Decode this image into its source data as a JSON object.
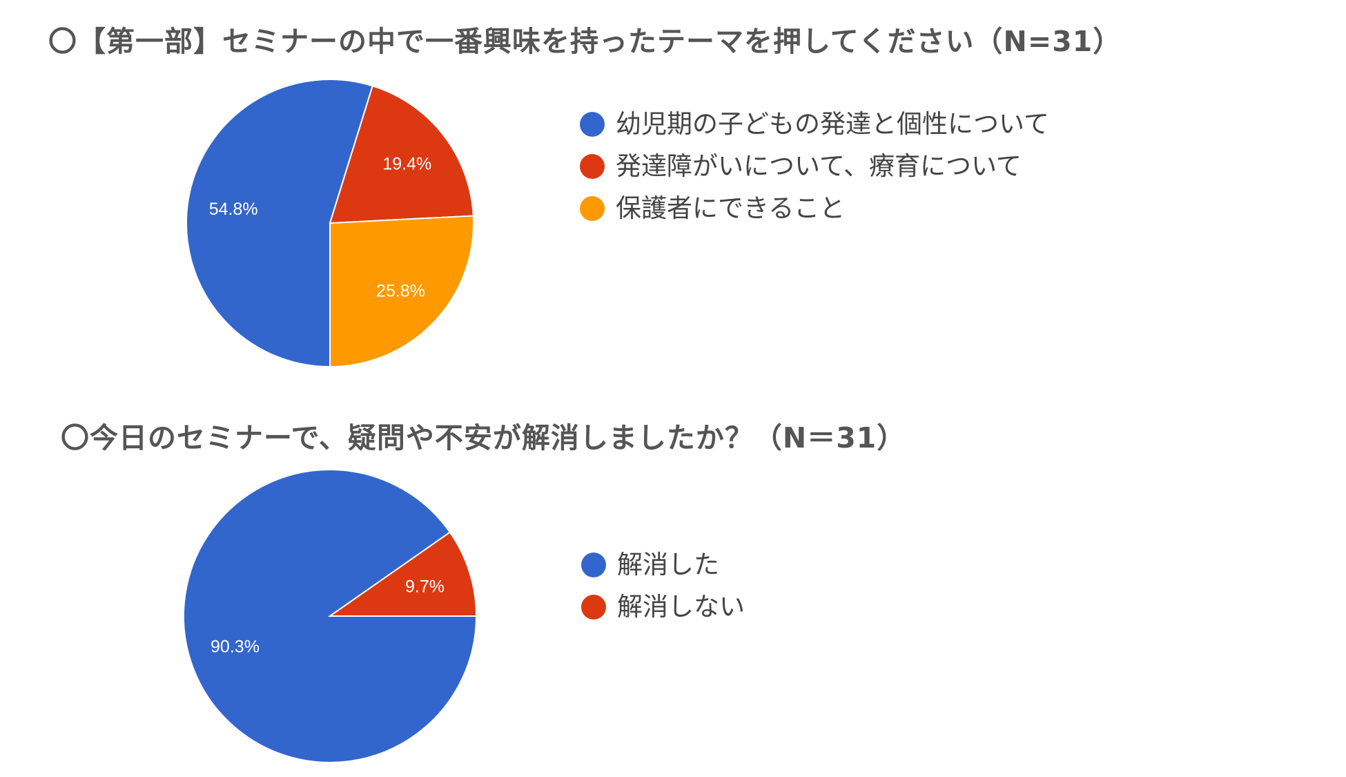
{
  "chart_data": [
    {
      "type": "pie",
      "title": "〇【第一部】セミナーの中で一番興味を持ったテーマを押してください（N=31）",
      "slices": [
        {
          "label": "幼児期の子どもの発達と個性について",
          "value": 54.8,
          "value_label": "54.8%",
          "color": "#3366cc"
        },
        {
          "label": "発達障がいについて、療育について",
          "value": 19.4,
          "value_label": "19.4%",
          "color": "#dc3912"
        },
        {
          "label": "保護者にできること",
          "value": 25.8,
          "value_label": "25.8%",
          "color": "#ff9900"
        }
      ],
      "legend_position": "right"
    },
    {
      "type": "pie",
      "title": "〇今日のセミナーで、疑問や不安が解消しましたか？（N＝31）",
      "slices": [
        {
          "label": "解消した",
          "value": 90.3,
          "value_label": "90.3%",
          "color": "#3366cc"
        },
        {
          "label": "解消しない",
          "value": 9.7,
          "value_label": "9.7%",
          "color": "#dc3912"
        }
      ],
      "legend_position": "right"
    }
  ]
}
